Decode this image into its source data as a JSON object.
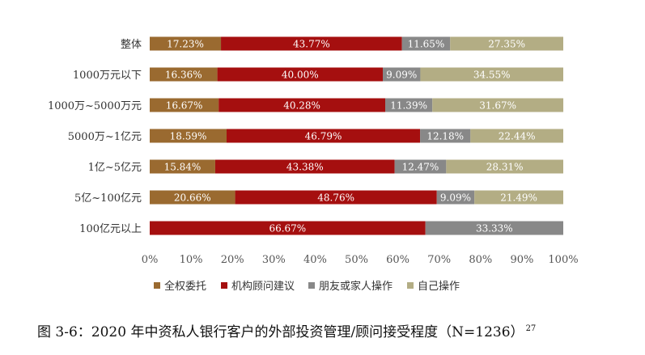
{
  "caption": {
    "text": "图 3-6：2020 年中资私人银行客户的外部投资管理/顾问接受程度（N=1236）",
    "footnote": "27"
  },
  "chart_data": {
    "type": "bar",
    "orientation": "horizontal",
    "stacked": true,
    "percent_stacked": true,
    "categories": [
      "整体",
      "1000万元以下",
      "1000万~5000万元",
      "5000万~1亿元",
      "1亿~5亿元",
      "5亿~100亿元",
      "100亿元以上"
    ],
    "series": [
      {
        "name": "全权委托",
        "color": "#9a6a30",
        "values": [
          17.23,
          16.36,
          16.67,
          18.59,
          15.84,
          20.66,
          null
        ],
        "labels": [
          "17.23%",
          "16.36%",
          "16.67%",
          "18.59%",
          "15.84%",
          "20.66%",
          ""
        ]
      },
      {
        "name": "机构顾问建议",
        "color": "#a50f0f",
        "values": [
          43.77,
          40.0,
          40.28,
          46.79,
          43.38,
          48.76,
          66.67
        ],
        "labels": [
          "43.77%",
          "40.00%",
          "40.28%",
          "46.79%",
          "43.38%",
          "48.76%",
          "66.67%"
        ]
      },
      {
        "name": "朋友或家人操作",
        "color": "#888888",
        "values": [
          11.65,
          9.09,
          11.39,
          12.18,
          12.47,
          9.09,
          33.33
        ],
        "labels": [
          "11.65%",
          "9.09%",
          "11.39%",
          "12.18%",
          "12.47%",
          "9.09%",
          "33.33%"
        ]
      },
      {
        "name": "自己操作",
        "color": "#b3ad84",
        "values": [
          27.35,
          34.55,
          31.67,
          22.44,
          28.31,
          21.49,
          null
        ],
        "labels": [
          "27.35%",
          "34.55%",
          "31.67%",
          "22.44%",
          "28.31%",
          "21.49%",
          ""
        ]
      }
    ],
    "x_ticks": [
      "0%",
      "10%",
      "20%",
      "30%",
      "40%",
      "50%",
      "60%",
      "70%",
      "80%",
      "90%",
      "100%"
    ],
    "xlim": [
      0,
      100
    ],
    "grid": false,
    "legend": "bottom"
  }
}
